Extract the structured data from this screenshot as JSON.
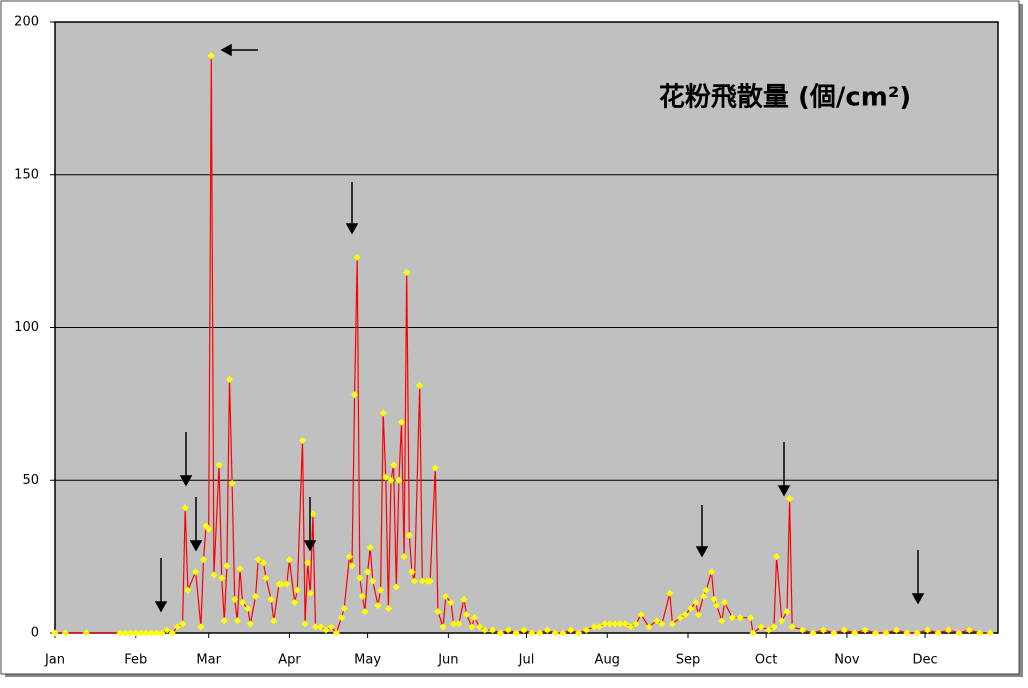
{
  "chart_data": {
    "type": "line",
    "title": "花粉飛散量 (個/cm²)",
    "title_color": "#ff0000",
    "line_color": "#ff0000",
    "marker_color": "#ffff00",
    "background": "#c0c0c0",
    "grid": true,
    "xlim": [
      1,
      363
    ],
    "ylim": [
      0,
      200
    ],
    "yticks": [
      0,
      50,
      100,
      150,
      200
    ],
    "xticks": [
      {
        "value": 1,
        "label": "Jan"
      },
      {
        "value": 32,
        "label": "Feb"
      },
      {
        "value": 60,
        "label": "Mar"
      },
      {
        "value": 91,
        "label": "Apr"
      },
      {
        "value": 121,
        "label": "May"
      },
      {
        "value": 152,
        "label": "Jun"
      },
      {
        "value": 182,
        "label": "Jul"
      },
      {
        "value": 213,
        "label": "Aug"
      },
      {
        "value": 244,
        "label": "Sep"
      },
      {
        "value": 274,
        "label": "Oct"
      },
      {
        "value": 305,
        "label": "Nov"
      },
      {
        "value": 335,
        "label": "Dec"
      }
    ],
    "x": [
      1,
      5,
      13,
      26,
      28,
      30,
      32,
      34,
      36,
      38,
      40,
      42,
      44,
      46,
      48,
      50,
      51,
      52,
      55,
      57,
      58,
      59,
      60,
      61,
      62,
      64,
      65,
      66,
      67,
      68,
      69,
      70,
      71,
      72,
      73,
      75,
      76,
      78,
      79,
      81,
      82,
      84,
      85,
      87,
      88,
      90,
      91,
      93,
      94,
      96,
      97,
      98,
      99,
      100,
      101,
      103,
      105,
      107,
      109,
      111,
      112,
      114,
      115,
      116,
      117,
      118,
      119,
      120,
      121,
      122,
      123,
      125,
      126,
      127,
      128,
      129,
      130,
      131,
      132,
      133,
      134,
      135,
      136,
      137,
      138,
      139,
      141,
      142,
      144,
      145,
      147,
      148,
      150,
      151,
      153,
      154,
      156,
      158,
      159,
      161,
      162,
      164,
      166,
      169,
      172,
      175,
      178,
      181,
      184,
      187,
      190,
      193,
      196,
      199,
      202,
      205,
      208,
      210,
      212,
      214,
      216,
      218,
      220,
      222,
      224,
      226,
      229,
      232,
      234,
      237,
      238,
      241,
      243,
      245,
      247,
      248,
      250,
      251,
      253,
      254,
      255,
      257,
      258,
      261,
      264,
      268,
      269,
      272,
      275,
      277,
      278,
      280,
      282,
      283,
      284,
      288,
      292,
      296,
      300,
      304,
      308,
      312,
      316,
      320,
      324,
      328,
      332,
      336,
      340,
      344,
      348,
      352,
      356,
      360
    ],
    "values": [
      0,
      0,
      0,
      0,
      0,
      0,
      0,
      0,
      0,
      0,
      0,
      0,
      1,
      0,
      2,
      3,
      41,
      14,
      20,
      2,
      24,
      35,
      34,
      189,
      19,
      55,
      18,
      4,
      22,
      83,
      49,
      11,
      4,
      21,
      10,
      8,
      3,
      12,
      24,
      23,
      18,
      11,
      4,
      16,
      16,
      16,
      24,
      10,
      14,
      63,
      3,
      23,
      13,
      39,
      2,
      2,
      1,
      2,
      0,
      5,
      8,
      25,
      22,
      78,
      123,
      18,
      12,
      7,
      20,
      28,
      17,
      9,
      14,
      72,
      51,
      8,
      50,
      55,
      15,
      50,
      69,
      25,
      118,
      32,
      20,
      17,
      81,
      17,
      17,
      17,
      54,
      7,
      2,
      12,
      10,
      3,
      3,
      11,
      6,
      2,
      5,
      2,
      1,
      1,
      0,
      1,
      0,
      1,
      0,
      0,
      1,
      0,
      0,
      1,
      0,
      1,
      2,
      2,
      3,
      3,
      3,
      3,
      3,
      2,
      3,
      6,
      2,
      4,
      3,
      13,
      3,
      5,
      6,
      8,
      10,
      6,
      12,
      14,
      20,
      11,
      9,
      4,
      10,
      5,
      5,
      5,
      0,
      2,
      1,
      2,
      25,
      4,
      7,
      44,
      2,
      1,
      0,
      1,
      0,
      1,
      0,
      1,
      0,
      0,
      1,
      0,
      0,
      1,
      0,
      1,
      0,
      1,
      0,
      0
    ]
  }
}
